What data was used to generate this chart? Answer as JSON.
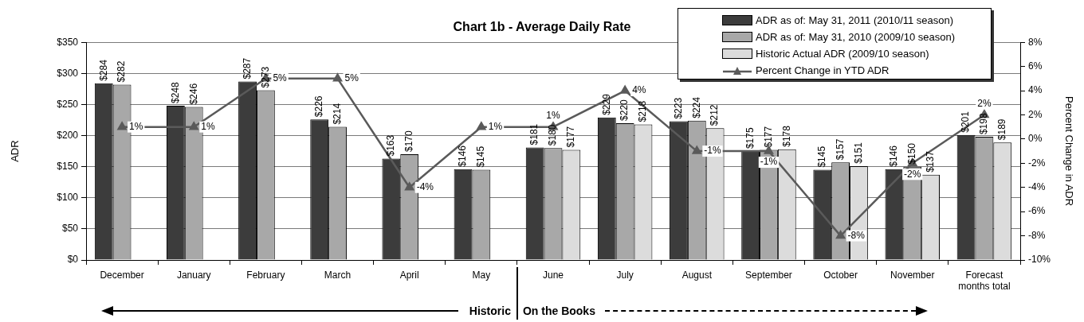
{
  "chart_data": {
    "type": "bar",
    "title": "Chart 1b - Average Daily Rate",
    "ylabel": "ADR",
    "y2label": "Percent Change in ADR",
    "categories": [
      "December",
      "January",
      "February",
      "March",
      "April",
      "May",
      "June",
      "July",
      "August",
      "September",
      "October",
      "November",
      "Forecast months total"
    ],
    "series": [
      {
        "name": "ADR as of: May 31, 2011 (2010/11 season)",
        "color": "#3c3c3c",
        "values": [
          284,
          248,
          287,
          226,
          163,
          146,
          181,
          229,
          223,
          175,
          145,
          146,
          201
        ],
        "value_labels": [
          "$284",
          "$248",
          "$287",
          "$226",
          "$163",
          "$146",
          "$181",
          "$229",
          "$223",
          "$175",
          "$145",
          "$146",
          "$201"
        ]
      },
      {
        "name": "ADR as of: May 31, 2010 (2009/10 season)",
        "color": "#a8a8a8",
        "values": [
          282,
          246,
          273,
          214,
          170,
          145,
          180,
          220,
          224,
          177,
          157,
          150,
          198
        ],
        "value_labels": [
          "$282",
          "$246",
          "$273",
          "$214",
          "$170",
          "$145",
          "$180",
          "$220",
          "$224",
          "$177",
          "$157",
          "$150",
          "$198"
        ]
      },
      {
        "name": "Historic Actual ADR (2009/10 season)",
        "color": "#dcdcdc",
        "values": [
          null,
          null,
          null,
          null,
          null,
          null,
          177,
          218,
          212,
          178,
          151,
          137,
          189
        ],
        "value_labels": [
          null,
          null,
          null,
          null,
          null,
          null,
          "$177",
          "$218",
          "$212",
          "$178",
          "$151",
          "$137",
          "$189"
        ]
      },
      {
        "name": "Percent Change in YTD ADR",
        "type": "line",
        "axis": "y2",
        "color": "#5a5a5a",
        "marker": "triangle",
        "line_style": "solid",
        "values": [
          1,
          1,
          5,
          5,
          -4,
          1,
          1,
          4,
          -1,
          -1,
          -8,
          -2,
          2
        ],
        "value_labels": [
          "1%",
          "1%",
          "5%",
          "5%",
          "-4%",
          "1%",
          "1%",
          "4%",
          "-1%",
          "-1%",
          "-8%",
          "-2%",
          "2%"
        ]
      }
    ],
    "ylim": [
      0,
      350
    ],
    "yticks": [
      {
        "value": 0,
        "label": "$0"
      },
      {
        "value": 50,
        "label": "$50"
      },
      {
        "value": 100,
        "label": "$100"
      },
      {
        "value": 150,
        "label": "$150"
      },
      {
        "value": 200,
        "label": "$200"
      },
      {
        "value": 250,
        "label": "$250"
      },
      {
        "value": 300,
        "label": "$300"
      },
      {
        "value": 350,
        "label": "$350"
      }
    ],
    "y2lim": [
      -10,
      8
    ],
    "y2ticks": [
      {
        "value": -10,
        "label": "-10%"
      },
      {
        "value": -8,
        "label": "-8%"
      },
      {
        "value": -6,
        "label": "-6%"
      },
      {
        "value": -4,
        "label": "-4%"
      },
      {
        "value": -2,
        "label": "-2%"
      },
      {
        "value": 0,
        "label": "0%"
      },
      {
        "value": 2,
        "label": "2%"
      },
      {
        "value": 4,
        "label": "4%"
      },
      {
        "value": 6,
        "label": "6%"
      },
      {
        "value": 8,
        "label": "8%"
      }
    ],
    "grid": "y",
    "legend": "top right",
    "annotations": [
      "Historic",
      "On the Books"
    ]
  }
}
